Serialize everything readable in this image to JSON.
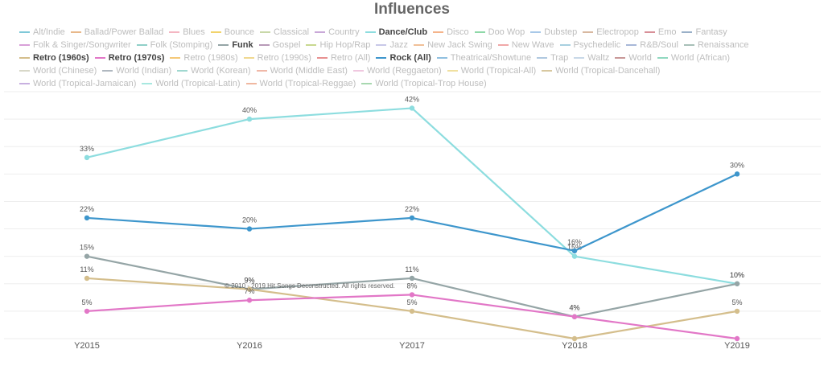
{
  "chart_data": {
    "type": "line",
    "title": "Influences",
    "categories": [
      "Y2015",
      "Y2016",
      "Y2017",
      "Y2018",
      "Y2019"
    ],
    "ylim": [
      0,
      45
    ],
    "grid": true,
    "legend_position": "top",
    "legend": [
      [
        {
          "name": "Alt/Indie",
          "color": "#7fc8d8",
          "active": false
        },
        {
          "name": "Ballad/Power Ballad",
          "color": "#e8b88a",
          "active": false
        },
        {
          "name": "Blues",
          "color": "#f4b6c2",
          "active": false
        },
        {
          "name": "Bounce",
          "color": "#f2d36b",
          "active": false
        },
        {
          "name": "Classical",
          "color": "#c8d8a8",
          "active": false
        },
        {
          "name": "Country",
          "color": "#c9a8d8",
          "active": false
        },
        {
          "name": "Dance/Club",
          "color": "#8ddddf",
          "active": true
        },
        {
          "name": "Disco",
          "color": "#f5b48a",
          "active": false
        },
        {
          "name": "Doo Wop",
          "color": "#8ed8a8",
          "active": false
        },
        {
          "name": "Dubstep",
          "color": "#a8c8e8",
          "active": false
        },
        {
          "name": "Electropop",
          "color": "#d8b8a0",
          "active": false
        },
        {
          "name": "Emo",
          "color": "#d89098",
          "active": false
        },
        {
          "name": "Fantasy",
          "color": "#9ab0c8",
          "active": false
        }
      ],
      [
        {
          "name": "Folk & Singer/Songwriter",
          "color": "#d8a0d8",
          "active": false
        },
        {
          "name": "Folk (Stomping)",
          "color": "#90d0c8",
          "active": false
        },
        {
          "name": "Funk",
          "color": "#95a5a6",
          "active": true
        },
        {
          "name": "Gospel",
          "color": "#b89ab8",
          "active": false
        },
        {
          "name": "Hip Hop/Rap",
          "color": "#c8d890",
          "active": false
        },
        {
          "name": "Jazz",
          "color": "#c8c8e8",
          "active": false
        },
        {
          "name": "New Jack Swing",
          "color": "#f0c098",
          "active": false
        },
        {
          "name": "New Wave",
          "color": "#f0a8a8",
          "active": false
        },
        {
          "name": "Psychedelic",
          "color": "#a8d0e0",
          "active": false
        },
        {
          "name": "R&B/Soul",
          "color": "#a8b8d8",
          "active": false
        },
        {
          "name": "Renaissance",
          "color": "#a8c0b8",
          "active": false
        }
      ],
      [
        {
          "name": "Retro (1960s)",
          "color": "#d4be8c",
          "active": true
        },
        {
          "name": "Retro (1970s)",
          "color": "#e277c7",
          "active": true
        },
        {
          "name": "Retro (1980s)",
          "color": "#f5c878",
          "active": false
        },
        {
          "name": "Retro (1990s)",
          "color": "#f0d890",
          "active": false
        },
        {
          "name": "Retro (All)",
          "color": "#e89090",
          "active": false
        },
        {
          "name": "Rock (All)",
          "color": "#3d96cc",
          "active": true
        },
        {
          "name": "Theatrical/Showtune",
          "color": "#90c0e0",
          "active": false
        },
        {
          "name": "Trap",
          "color": "#b0c8e0",
          "active": false
        },
        {
          "name": "Waltz",
          "color": "#c8d8e8",
          "active": false
        },
        {
          "name": "World",
          "color": "#c89898",
          "active": false
        },
        {
          "name": "World (African)",
          "color": "#90d8c0",
          "active": false
        }
      ],
      [
        {
          "name": "World (Chinese)",
          "color": "#d8d8c8",
          "active": false
        },
        {
          "name": "World (Indian)",
          "color": "#b0b8c0",
          "active": false
        },
        {
          "name": "World (Korean)",
          "color": "#a0d8d0",
          "active": false
        },
        {
          "name": "World (Middle East)",
          "color": "#f0b8a8",
          "active": false
        },
        {
          "name": "World (Reggaeton)",
          "color": "#f0c8e0",
          "active": false
        },
        {
          "name": "World (Tropical-All)",
          "color": "#f0e0a0",
          "active": false
        },
        {
          "name": "World (Tropical-Dancehall)",
          "color": "#d8c8a0",
          "active": false
        }
      ],
      [
        {
          "name": "World (Tropical-Jamaican)",
          "color": "#c8b0e0",
          "active": false
        },
        {
          "name": "World (Tropical-Latin)",
          "color": "#a8e8e0",
          "active": false
        },
        {
          "name": "World (Tropical-Reggae)",
          "color": "#f0b8a0",
          "active": false
        },
        {
          "name": "World (Tropical-Trop House)",
          "color": "#a8d8b0",
          "active": false
        }
      ]
    ],
    "series": [
      {
        "name": "Dance/Club",
        "color": "#8ddddf",
        "values": [
          33,
          40,
          42,
          15,
          10
        ],
        "labels": [
          "33%",
          "40%",
          "42%",
          "15%",
          "10%"
        ]
      },
      {
        "name": "Rock (All)",
        "color": "#3d96cc",
        "values": [
          22,
          20,
          22,
          16,
          30
        ],
        "labels": [
          "22%",
          "20%",
          "22%",
          "16%",
          "30%"
        ]
      },
      {
        "name": "Funk",
        "color": "#95a5a6",
        "values": [
          15,
          9,
          11,
          4,
          10
        ],
        "labels": [
          "15%",
          "9%",
          "11%",
          "4%",
          "10%"
        ]
      },
      {
        "name": "Retro (1960s)",
        "color": "#d4be8c",
        "values": [
          11,
          9,
          5,
          0,
          5
        ],
        "labels": [
          "11%",
          "9%",
          "5%",
          "",
          "5%"
        ]
      },
      {
        "name": "Retro (1970s)",
        "color": "#e277c7",
        "values": [
          5,
          7,
          8,
          4,
          0
        ],
        "labels": [
          "5%",
          "7%",
          "8%",
          "4%",
          ""
        ]
      }
    ],
    "watermark": "© 2010 - 2019 Hit Songs Deconstructed. All rights reserved."
  }
}
